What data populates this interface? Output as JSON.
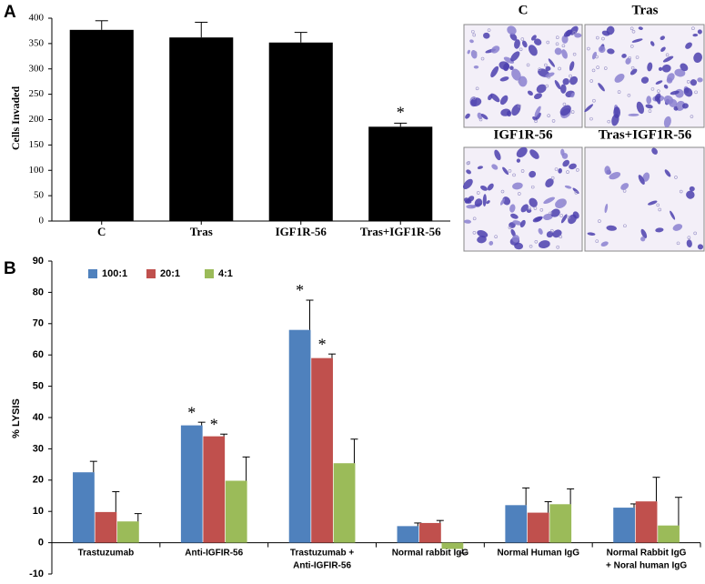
{
  "panel_labels": [
    "A",
    "B"
  ],
  "micrographs": [
    "C",
    "Tras",
    "IGF1R-56",
    "Tras+IGF1R-56"
  ],
  "chart_data": [
    {
      "type": "bar",
      "y_label": "Cells Invaded",
      "categories": [
        "C",
        "Tras",
        "IGF1R-56",
        "Tras+IGF1R-56"
      ],
      "values": [
        377,
        362,
        352,
        186
      ],
      "errors": [
        18,
        30,
        20,
        7
      ],
      "value_annotations": [
        null,
        null,
        null,
        "*"
      ],
      "color": "#000000",
      "ylim": [
        0,
        400
      ],
      "yticks": [
        0,
        50,
        100,
        150,
        200,
        250,
        300,
        350,
        400
      ],
      "grid": false
    },
    {
      "type": "bar",
      "y_label": "% LYSIS",
      "categories": [
        [
          "Trastuzumab"
        ],
        [
          "Anti-IGFIR-56"
        ],
        [
          "Trastuzumab +",
          "Anti-IGFIR-56"
        ],
        [
          "Normal rabbit IgG"
        ],
        [
          "Normal Human IgG"
        ],
        [
          "Normal Rabbit IgG",
          "+ Noral human IgG"
        ]
      ],
      "series": [
        {
          "name": "100:1",
          "color": "#4f81bd",
          "values": [
            22.5,
            37.5,
            68,
            5.3,
            12,
            11.2
          ],
          "errors": [
            3.5,
            1,
            9.5,
            1,
            5.5,
            1.2
          ],
          "value_annotations": [
            null,
            "*",
            "*",
            null,
            null,
            null
          ]
        },
        {
          "name": "20:1",
          "color": "#c0504d",
          "values": [
            9.8,
            34,
            59,
            6.3,
            9.6,
            13.2
          ],
          "errors": [
            6.5,
            0.7,
            1.3,
            0.8,
            3.5,
            7.7
          ],
          "value_annotations": [
            null,
            "*",
            "*",
            null,
            null,
            null
          ]
        },
        {
          "name": "4:1",
          "color": "#9bbb59",
          "values": [
            6.8,
            19.8,
            25.4,
            -2,
            12.3,
            5.5
          ],
          "errors": [
            2.5,
            7.6,
            7.7,
            1.3,
            4.9,
            9
          ],
          "value_annotations": [
            null,
            null,
            null,
            null,
            null,
            null
          ]
        }
      ],
      "ylim": [
        -10,
        90
      ],
      "yticks": [
        -10,
        0,
        10,
        20,
        30,
        40,
        50,
        60,
        70,
        80,
        90
      ],
      "grid": false,
      "legend": "top-left"
    }
  ]
}
